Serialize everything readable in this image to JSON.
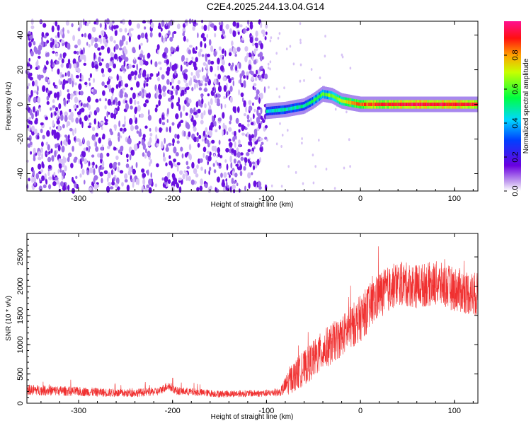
{
  "title": "C2E4.2025.244.13.04.G14",
  "colors": {
    "snr_line": "#f03030",
    "background_speckle": "#7a1fe0",
    "axis": "#000000"
  },
  "chart_data": [
    {
      "type": "heatmap",
      "xlabel": "Height of straight line (km)",
      "ylabel": "Frequency (Hz)",
      "xlim": [
        -355,
        125
      ],
      "ylim": [
        -50,
        48
      ],
      "xticks": [
        -300,
        -200,
        -100,
        0,
        100
      ],
      "yticks": [
        -40,
        -20,
        0,
        20,
        40
      ],
      "colorbar": {
        "label": "Normalized spectral amplitude",
        "range": [
          0,
          1
        ],
        "ticks": [
          0.0,
          0.2,
          0.4,
          0.6,
          0.8
        ],
        "colormap": "rainbow (purple-blue-cyan-green-yellow-red-magenta)"
      },
      "noise_region_x": [
        -355,
        -100
      ],
      "noise_gap_x": -220,
      "signal_track": [
        {
          "x": -100,
          "y": -4
        },
        {
          "x": -80,
          "y": -3
        },
        {
          "x": -60,
          "y": -1
        },
        {
          "x": -50,
          "y": 2
        },
        {
          "x": -40,
          "y": 6
        },
        {
          "x": -30,
          "y": 5
        },
        {
          "x": -20,
          "y": 2
        },
        {
          "x": -10,
          "y": 1
        },
        {
          "x": 0,
          "y": 0
        },
        {
          "x": 50,
          "y": 0
        },
        {
          "x": 125,
          "y": 0
        }
      ],
      "signal_amplitude": [
        {
          "x": -100,
          "a": 0.45
        },
        {
          "x": -60,
          "a": 0.5
        },
        {
          "x": -40,
          "a": 0.6
        },
        {
          "x": -20,
          "a": 0.7
        },
        {
          "x": 0,
          "a": 0.85
        },
        {
          "x": 60,
          "a": 0.95
        },
        {
          "x": 125,
          "a": 0.9
        }
      ]
    },
    {
      "type": "line",
      "xlabel": "Height of straight line (km)",
      "ylabel": "SNR (10 * v/v)",
      "xlim": [
        -355,
        125
      ],
      "ylim": [
        0,
        2900
      ],
      "xticks": [
        -300,
        -200,
        -100,
        0,
        100
      ],
      "yticks": [
        0,
        500,
        1000,
        1500,
        2000,
        2500
      ],
      "series": [
        {
          "envelope": [
            {
              "x": -355,
              "mean": 230,
              "spread": 90
            },
            {
              "x": -300,
              "mean": 200,
              "spread": 80
            },
            {
              "x": -250,
              "mean": 170,
              "spread": 70
            },
            {
              "x": -215,
              "mean": 200,
              "spread": 70
            },
            {
              "x": -205,
              "mean": 300,
              "spread": 80
            },
            {
              "x": -195,
              "mean": 210,
              "spread": 70
            },
            {
              "x": -150,
              "mean": 160,
              "spread": 60
            },
            {
              "x": -100,
              "mean": 170,
              "spread": 60
            },
            {
              "x": -85,
              "mean": 190,
              "spread": 70
            },
            {
              "x": -75,
              "mean": 400,
              "spread": 250
            },
            {
              "x": -60,
              "mean": 600,
              "spread": 300
            },
            {
              "x": -40,
              "mean": 900,
              "spread": 350
            },
            {
              "x": -20,
              "mean": 1150,
              "spread": 350
            },
            {
              "x": 0,
              "mean": 1450,
              "spread": 400
            },
            {
              "x": 20,
              "mean": 1850,
              "spread": 400
            },
            {
              "x": 40,
              "mean": 2050,
              "spread": 380
            },
            {
              "x": 60,
              "mean": 2000,
              "spread": 380
            },
            {
              "x": 80,
              "mean": 2050,
              "spread": 380
            },
            {
              "x": 100,
              "mean": 1950,
              "spread": 380
            },
            {
              "x": 125,
              "mean": 1850,
              "spread": 380
            }
          ]
        }
      ]
    }
  ]
}
